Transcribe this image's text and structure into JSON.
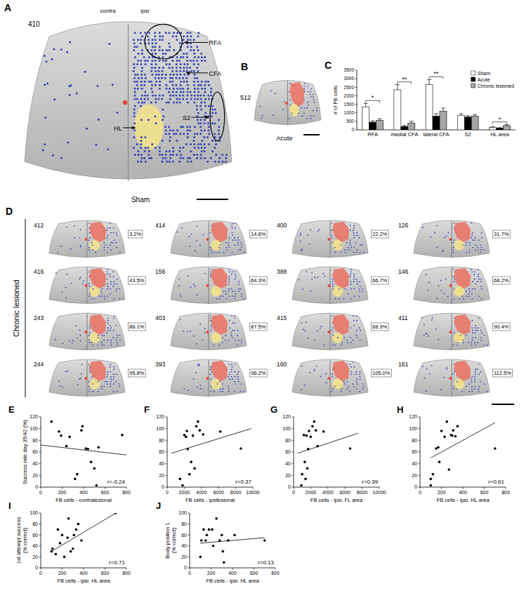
{
  "figure": {
    "A": {
      "panel": "A",
      "animal": "410",
      "hemispheres": [
        "contra",
        "ipsi"
      ],
      "regions": [
        "RFA",
        "CFA",
        "HL",
        "S2"
      ],
      "condition": "Sham"
    },
    "B": {
      "panel": "B",
      "animal": "512",
      "condition": "Acute"
    },
    "D": {
      "panel": "D",
      "group": "Chronic lesioned",
      "animals": [
        {
          "id": "412",
          "success": "3.2%"
        },
        {
          "id": "414",
          "success": "14.6%"
        },
        {
          "id": "400",
          "success": "22.2%"
        },
        {
          "id": "126",
          "success": "31.7%"
        },
        {
          "id": "416",
          "success": "43.5%"
        },
        {
          "id": "156",
          "success": "64.3%"
        },
        {
          "id": "388",
          "success": "66.7%"
        },
        {
          "id": "146",
          "success": "68.2%"
        },
        {
          "id": "243",
          "success": "86.1%"
        },
        {
          "id": "403",
          "success": "87.5%"
        },
        {
          "id": "415",
          "success": "88.9%"
        },
        {
          "id": "411",
          "success": "90.4%"
        },
        {
          "id": "244",
          "success": "95.8%"
        },
        {
          "id": "393",
          "success": "96.2%"
        },
        {
          "id": "160",
          "success": "105.0%"
        },
        {
          "id": "161",
          "success": "112.5%"
        }
      ]
    }
  },
  "chart_data": [
    {
      "panel": "C",
      "type": "bar",
      "ylabel": "# of FB cells",
      "categories": [
        "RFA",
        "medial CFA",
        "lateral CFA",
        "S2",
        "HL area"
      ],
      "series": [
        {
          "name": "Sham",
          "color": "#ffffff",
          "values": [
            1350,
            2350,
            2650,
            850,
            150
          ],
          "errors": [
            200,
            300,
            300,
            100,
            40
          ]
        },
        {
          "name": "Acute",
          "color": "#000000",
          "values": [
            450,
            200,
            800,
            750,
            100
          ],
          "errors": [
            80,
            60,
            150,
            80,
            30
          ]
        },
        {
          "name": "Chronic lesioned",
          "color": "#a6a6a6",
          "values": [
            550,
            400,
            1100,
            800,
            250
          ],
          "errors": [
            100,
            100,
            180,
            90,
            50
          ]
        }
      ],
      "ylim": [
        0,
        3500
      ],
      "yticks": [
        0,
        500,
        1000,
        1500,
        2000,
        2500,
        3000,
        3500
      ],
      "legend": "upper right",
      "annotations": [
        {
          "category": "RFA",
          "label": "*"
        },
        {
          "category": "medial CFA",
          "label": "**"
        },
        {
          "category": "lateral CFA",
          "label": "**"
        },
        {
          "category": "HL area",
          "label": "*"
        }
      ]
    },
    {
      "panel": "E",
      "type": "scatter",
      "xlabel": "FB cells - contralesional",
      "ylabel": "Success rate day 35/42 (%)",
      "x": [
        100,
        170,
        190,
        240,
        270,
        320,
        340,
        380,
        390,
        420,
        440,
        470,
        500,
        520,
        540,
        760
      ],
      "values": [
        112,
        95,
        88,
        70,
        86,
        14,
        22,
        97,
        104,
        66,
        65,
        43,
        32,
        3,
        68,
        89
      ],
      "color": "#000000",
      "xlim": [
        0,
        800
      ],
      "xticks": [
        0,
        200,
        400,
        600,
        800
      ],
      "ylim": [
        0,
        120
      ],
      "yticks": [
        0,
        20,
        40,
        60,
        80,
        100,
        120
      ],
      "fit_x": [
        0,
        800
      ],
      "fit_y": [
        72,
        55
      ],
      "annotation": "r=-0.24"
    },
    {
      "panel": "F",
      "type": "scatter",
      "xlabel": "FB cells - ipsilesional",
      "x": [
        1500,
        1800,
        2000,
        2200,
        2300,
        2400,
        2600,
        2800,
        3000,
        3200,
        3400,
        3600,
        3800,
        4200,
        6200,
        8600
      ],
      "values": [
        14,
        3,
        89,
        86,
        96,
        65,
        22,
        43,
        88,
        32,
        104,
        112,
        97,
        90,
        95,
        66
      ],
      "color": "#000000",
      "xlim": [
        0,
        10000
      ],
      "xticks": [
        0,
        2000,
        4000,
        6000,
        8000,
        10000
      ],
      "ylim": [
        0,
        120
      ],
      "yticks": [
        0,
        20,
        40,
        60,
        80,
        100,
        120
      ],
      "fit_x": [
        500,
        9800
      ],
      "fit_y": [
        58,
        100
      ],
      "annotation": "r=0.37"
    },
    {
      "panel": "G",
      "type": "scatter",
      "xlabel": "FB cells - ipsi. FL area",
      "x": [
        900,
        1000,
        1200,
        1300,
        1400,
        1500,
        1600,
        1700,
        1800,
        2000,
        2200,
        2400,
        2600,
        2800,
        3500,
        6600
      ],
      "values": [
        3,
        22,
        89,
        43,
        14,
        88,
        32,
        65,
        96,
        86,
        104,
        112,
        97,
        70,
        95,
        66
      ],
      "color": "#000000",
      "xlim": [
        0,
        10000
      ],
      "xticks": [
        0,
        2000,
        4000,
        6000,
        8000,
        10000
      ],
      "ylim": [
        0,
        120
      ],
      "yticks": [
        0,
        20,
        40,
        60,
        80,
        100,
        120
      ],
      "fit_x": [
        500,
        7500
      ],
      "fit_y": [
        58,
        92
      ],
      "annotation": "r=0.39"
    },
    {
      "panel": "H",
      "type": "scatter",
      "xlabel": "FB cells - ipsi. HL area",
      "x": [
        100,
        100,
        120,
        150,
        170,
        180,
        200,
        230,
        250,
        270,
        290,
        300,
        310,
        330,
        350,
        700
      ],
      "values": [
        3,
        14,
        22,
        66,
        68,
        43,
        96,
        86,
        112,
        30,
        89,
        88,
        97,
        87,
        104,
        66
      ],
      "color": "#000000",
      "xlim": [
        0,
        800
      ],
      "xticks": [
        0,
        200,
        400,
        600,
        800
      ],
      "ylim": [
        0,
        120
      ],
      "yticks": [
        0,
        20,
        40,
        60,
        80,
        100,
        120
      ],
      "fit_x": [
        100,
        700
      ],
      "fit_y": [
        50,
        110
      ],
      "annotation": "r=0.61"
    },
    {
      "panel": "I",
      "type": "scatter",
      "xlabel": "FB cells - ipsi. HL area",
      "ylabel": "1st attempt success (% correct)",
      "x": [
        100,
        110,
        140,
        160,
        180,
        200,
        220,
        250,
        260,
        280,
        300,
        310,
        330,
        350,
        380,
        700
      ],
      "values": [
        30,
        35,
        25,
        70,
        45,
        60,
        20,
        55,
        90,
        30,
        35,
        60,
        70,
        80,
        50,
        100
      ],
      "color": "#000000",
      "xlim": [
        0,
        800
      ],
      "xticks": [
        0,
        200,
        400,
        600,
        800
      ],
      "ylim": [
        0,
        100
      ],
      "yticks": [
        0,
        20,
        40,
        60,
        80,
        100
      ],
      "fit_x": [
        100,
        700
      ],
      "fit_y": [
        30,
        100
      ],
      "annotation": "r=0.71"
    },
    {
      "panel": "J",
      "type": "scatter",
      "xlabel": "FB cells - ipsi. HL area",
      "ylabel": "Body position 1 (% correct)",
      "x": [
        100,
        110,
        130,
        150,
        160,
        180,
        210,
        220,
        250,
        280,
        300,
        310,
        320,
        360,
        420,
        700
      ],
      "values": [
        20,
        50,
        70,
        50,
        60,
        70,
        70,
        40,
        90,
        50,
        60,
        30,
        10,
        50,
        60,
        50
      ],
      "color": "#000000",
      "xlim": [
        0,
        800
      ],
      "xticks": [
        0,
        200,
        400,
        600,
        800
      ],
      "ylim": [
        0,
        100
      ],
      "yticks": [
        0,
        20,
        40,
        60,
        80,
        100
      ],
      "fit_x": [
        100,
        700
      ],
      "fit_y": [
        45,
        55
      ],
      "annotation": "r=0.13"
    }
  ]
}
